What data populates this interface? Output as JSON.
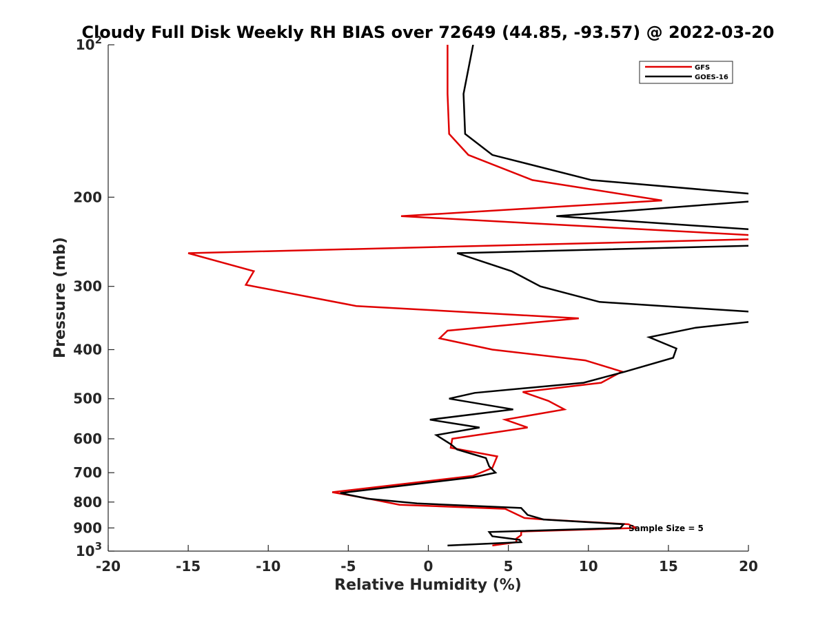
{
  "chart_data": {
    "type": "line",
    "title": "Cloudy Full Disk Weekly RH BIAS over 72649 (44.85, -93.57) @ 2022-03-20",
    "xlabel": "Relative Humidity (%)",
    "ylabel": "Pressure (mb)",
    "xlim": [
      -20,
      20
    ],
    "ylim": [
      100,
      1000
    ],
    "y_scale": "log",
    "y_reversed": true,
    "x_ticks": [
      "-20",
      "-15",
      "-10",
      "-5",
      "0",
      "5",
      "10",
      "15",
      "20"
    ],
    "y_ticks": [
      {
        "value": 100,
        "base": "10",
        "exp": "2"
      },
      {
        "value": 200,
        "label": "200"
      },
      {
        "value": 300,
        "label": "300"
      },
      {
        "value": 400,
        "label": "400"
      },
      {
        "value": 500,
        "label": "500"
      },
      {
        "value": 600,
        "label": "600"
      },
      {
        "value": 700,
        "label": "700"
      },
      {
        "value": 800,
        "label": "800"
      },
      {
        "value": 900,
        "label": "900"
      },
      {
        "value": 1000,
        "base": "10",
        "exp": "3"
      }
    ],
    "legend_position": "top-right",
    "grid": false,
    "annotation": "Sample Size = 5",
    "series": [
      {
        "name": "GFS",
        "color": "#e00000",
        "points": [
          [
            1.2,
            100
          ],
          [
            1.2,
            125
          ],
          [
            1.3,
            150
          ],
          [
            2.5,
            165
          ],
          [
            6.5,
            185
          ],
          [
            14.6,
            203
          ],
          [
            -1.7,
            218
          ],
          [
            20.5,
            238
          ],
          [
            20.5,
            242
          ],
          [
            -15.0,
            258
          ],
          [
            -10.9,
            280
          ],
          [
            -11.4,
            298
          ],
          [
            -4.5,
            328
          ],
          [
            9.4,
            347
          ],
          [
            1.2,
            367
          ],
          [
            0.7,
            380
          ],
          [
            4.0,
            400
          ],
          [
            9.8,
            420
          ],
          [
            12.1,
            442
          ],
          [
            10.8,
            465
          ],
          [
            5.9,
            485
          ],
          [
            7.5,
            505
          ],
          [
            8.5,
            525
          ],
          [
            4.8,
            550
          ],
          [
            6.2,
            570
          ],
          [
            1.5,
            600
          ],
          [
            1.4,
            625
          ],
          [
            4.3,
            650
          ],
          [
            4.0,
            685
          ],
          [
            2.8,
            710
          ],
          [
            -6.0,
            765
          ],
          [
            -4.0,
            785
          ],
          [
            -1.8,
            810
          ],
          [
            4.8,
            825
          ],
          [
            6.0,
            860
          ],
          [
            7.0,
            865
          ],
          [
            12.5,
            885
          ],
          [
            13.0,
            900
          ],
          [
            5.8,
            915
          ],
          [
            5.8,
            930
          ],
          [
            5.5,
            945
          ],
          [
            5.5,
            960
          ],
          [
            4.0,
            975
          ]
        ]
      },
      {
        "name": "GOES-16",
        "color": "#000000",
        "points": [
          [
            2.8,
            100
          ],
          [
            2.2,
            125
          ],
          [
            2.3,
            150
          ],
          [
            4.0,
            165
          ],
          [
            10.2,
            185
          ],
          [
            21.0,
            198
          ],
          [
            20.0,
            204
          ],
          [
            8.0,
            218
          ],
          [
            20.5,
            232
          ],
          [
            21.0,
            243
          ],
          [
            21.0,
            249
          ],
          [
            1.8,
            258
          ],
          [
            5.2,
            280
          ],
          [
            7.0,
            300
          ],
          [
            10.7,
            322
          ],
          [
            21.0,
            338
          ],
          [
            21.0,
            350
          ],
          [
            16.7,
            362
          ],
          [
            13.8,
            378
          ],
          [
            15.5,
            398
          ],
          [
            15.3,
            415
          ],
          [
            12.3,
            442
          ],
          [
            9.7,
            465
          ],
          [
            2.9,
            487
          ],
          [
            1.3,
            500
          ],
          [
            5.3,
            525
          ],
          [
            0.1,
            550
          ],
          [
            3.2,
            570
          ],
          [
            0.5,
            590
          ],
          [
            1.4,
            615
          ],
          [
            1.8,
            630
          ],
          [
            3.6,
            655
          ],
          [
            3.8,
            680
          ],
          [
            4.2,
            700
          ],
          [
            2.8,
            715
          ],
          [
            -5.5,
            768
          ],
          [
            -3.8,
            788
          ],
          [
            -0.7,
            805
          ],
          [
            5.8,
            822
          ],
          [
            6.2,
            848
          ],
          [
            7.2,
            866
          ],
          [
            12.2,
            885
          ],
          [
            12.0,
            900
          ],
          [
            3.8,
            917
          ],
          [
            4.0,
            935
          ],
          [
            5.7,
            950
          ],
          [
            5.8,
            960
          ],
          [
            1.2,
            975
          ]
        ]
      }
    ]
  }
}
